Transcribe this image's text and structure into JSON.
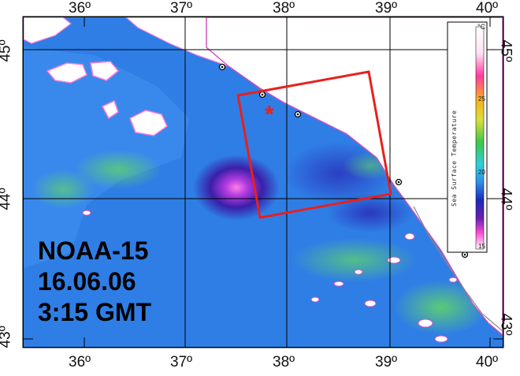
{
  "map": {
    "axis_labels": {
      "top": [
        "36º",
        "37º",
        "38º",
        "39º",
        "40º"
      ],
      "bottom": [
        "36º",
        "37º",
        "38º",
        "39º",
        "40º"
      ],
      "left": [
        "45º",
        "44º",
        "43º"
      ],
      "right": [
        "45º",
        "44º",
        "43º"
      ]
    },
    "caption": {
      "satellite": "NOAA-15",
      "date": "16.06.06",
      "time": "3:15 GMT"
    },
    "colorbar": {
      "unit": "°C",
      "title": "Sea Surface Temperature",
      "ticks": [
        "25",
        "20",
        "15"
      ]
    },
    "marker_symbol": "*",
    "colors": {
      "study_area": "#e8201c",
      "land": "#ffffff",
      "water_base": "#2f7ee6",
      "cold": "#1a2aa8",
      "warm": "#3ec26a"
    }
  }
}
